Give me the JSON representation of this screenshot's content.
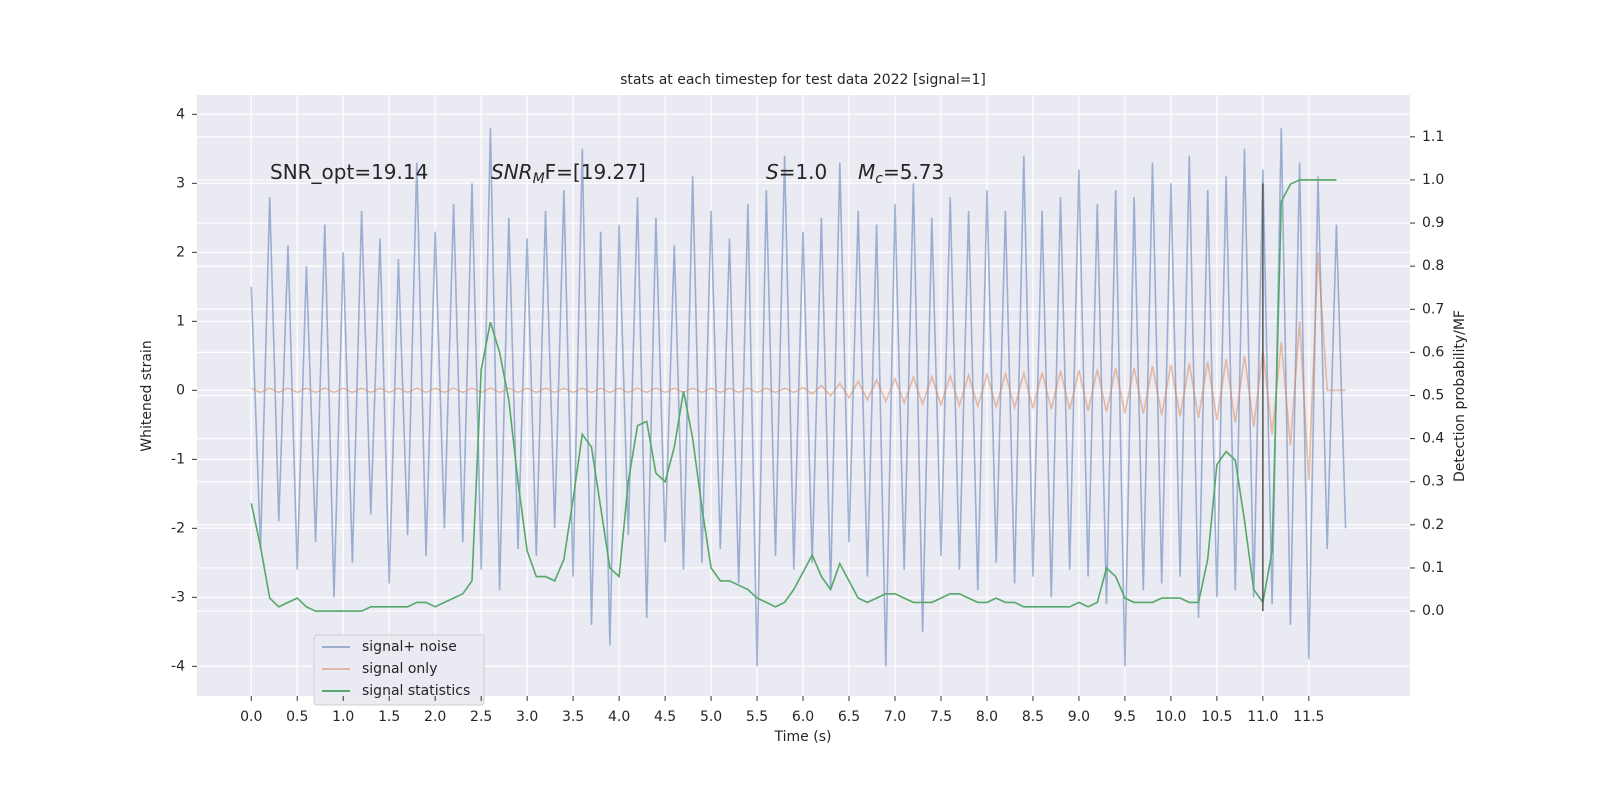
{
  "chart_data": {
    "type": "line",
    "title": "stats at each timestep for test data 2022 [signal=1]",
    "xlabel": "Time (s)",
    "ylabel": "Whitened strain",
    "y2label": "Detection probability/MF",
    "annotations": [
      {
        "text": "SNR_opt=19.14"
      },
      {
        "text": "SNR",
        "sub": "M",
        "tail": "F=[19.27]"
      },
      {
        "text": "S",
        "tail": "=1.0"
      },
      {
        "text": "M",
        "sub": "c",
        "tail": "=5.73"
      }
    ],
    "x": [
      0.0,
      0.1,
      0.2,
      0.3,
      0.4,
      0.5,
      0.6,
      0.7,
      0.8,
      0.9,
      1.0,
      1.1,
      1.2,
      1.3,
      1.4,
      1.5,
      1.6,
      1.7,
      1.8,
      1.9,
      2.0,
      2.1,
      2.2,
      2.3,
      2.4,
      2.5,
      2.6,
      2.7,
      2.8,
      2.9,
      3.0,
      3.1,
      3.2,
      3.3,
      3.4,
      3.5,
      3.6,
      3.7,
      3.8,
      3.9,
      4.0,
      4.1,
      4.2,
      4.3,
      4.4,
      4.5,
      4.6,
      4.7,
      4.8,
      4.9,
      5.0,
      5.1,
      5.2,
      5.3,
      5.4,
      5.5,
      5.6,
      5.7,
      5.8,
      5.9,
      6.0,
      6.1,
      6.2,
      6.3,
      6.4,
      6.5,
      6.6,
      6.7,
      6.8,
      6.9,
      7.0,
      7.1,
      7.2,
      7.3,
      7.4,
      7.5,
      7.6,
      7.7,
      7.8,
      7.9,
      8.0,
      8.1,
      8.2,
      8.3,
      8.4,
      8.5,
      8.6,
      8.7,
      8.8,
      8.9,
      9.0,
      9.1,
      9.2,
      9.3,
      9.4,
      9.5,
      9.6,
      9.7,
      9.8,
      9.9,
      10.0,
      10.1,
      10.2,
      10.3,
      10.4,
      10.5,
      10.6,
      10.7,
      10.8,
      10.9,
      11.0,
      11.1,
      11.2,
      11.3,
      11.4,
      11.5,
      11.6,
      11.7,
      11.8,
      11.9
    ],
    "series": [
      {
        "name": "signal+ noise",
        "color": "#4c72b0",
        "opacity": 0.5,
        "values": [
          1.5,
          -2.3,
          2.8,
          -1.9,
          2.1,
          -2.6,
          1.8,
          -2.2,
          2.4,
          -3.0,
          2.0,
          -2.5,
          2.6,
          -1.8,
          2.2,
          -2.8,
          1.9,
          -2.1,
          3.3,
          -2.4,
          2.3,
          -2.0,
          2.7,
          -2.2,
          3.0,
          -2.6,
          3.8,
          -2.9,
          2.5,
          -2.3,
          2.2,
          -2.4,
          2.6,
          -2.0,
          2.9,
          -2.7,
          3.5,
          -3.4,
          2.3,
          -3.7,
          2.4,
          -2.1,
          2.8,
          -3.3,
          2.5,
          -2.2,
          2.1,
          -2.6,
          3.1,
          -2.5,
          2.6,
          -2.3,
          2.2,
          -2.8,
          2.7,
          -4.0,
          2.9,
          -2.4,
          3.4,
          -2.6,
          2.3,
          -2.5,
          2.5,
          -2.9,
          3.3,
          -2.2,
          2.6,
          -2.7,
          2.4,
          -4.0,
          2.7,
          -2.6,
          3.0,
          -3.5,
          2.5,
          -2.4,
          2.8,
          -2.6,
          2.6,
          -2.9,
          2.9,
          -2.5,
          2.6,
          -2.8,
          3.4,
          -2.7,
          2.6,
          -3.0,
          2.8,
          -2.6,
          3.2,
          -2.7,
          2.7,
          -3.1,
          2.9,
          -4.0,
          2.8,
          -2.9,
          3.3,
          -2.8,
          3.0,
          -2.7,
          3.4,
          -3.3,
          2.9,
          -3.0,
          3.1,
          -2.9,
          3.5,
          -3.0,
          3.2,
          -3.1,
          3.8,
          -3.4,
          3.3,
          -3.9,
          3.1,
          -2.3,
          2.4,
          -2.0
        ]
      },
      {
        "name": "signal only",
        "color": "#dd8452",
        "opacity": 0.5,
        "values": [
          0.03,
          -0.03,
          0.03,
          -0.03,
          0.03,
          -0.03,
          0.03,
          -0.03,
          0.03,
          -0.03,
          0.03,
          -0.03,
          0.03,
          -0.03,
          0.03,
          -0.03,
          0.03,
          -0.03,
          0.03,
          -0.03,
          0.03,
          -0.03,
          0.03,
          -0.03,
          0.03,
          -0.03,
          0.03,
          -0.03,
          0.03,
          -0.03,
          0.03,
          -0.03,
          0.03,
          -0.03,
          0.03,
          -0.03,
          0.03,
          -0.03,
          0.03,
          -0.03,
          0.03,
          -0.03,
          0.03,
          -0.03,
          0.03,
          -0.03,
          0.03,
          -0.03,
          0.03,
          -0.03,
          0.03,
          -0.03,
          0.03,
          -0.03,
          0.03,
          -0.03,
          0.03,
          -0.03,
          0.03,
          -0.03,
          0.04,
          -0.05,
          0.07,
          -0.08,
          0.1,
          -0.11,
          0.13,
          -0.14,
          0.15,
          -0.16,
          0.17,
          -0.18,
          0.19,
          -0.2,
          0.2,
          -0.21,
          0.21,
          -0.22,
          0.22,
          -0.23,
          0.23,
          -0.24,
          0.24,
          -0.25,
          0.25,
          -0.26,
          0.26,
          -0.27,
          0.28,
          -0.28,
          0.29,
          -0.3,
          0.3,
          -0.31,
          0.32,
          -0.33,
          0.33,
          -0.34,
          0.35,
          -0.36,
          0.37,
          -0.38,
          0.39,
          -0.4,
          0.42,
          -0.43,
          0.45,
          -0.47,
          0.5,
          -0.53,
          0.58,
          -0.63,
          0.7,
          -0.8,
          1.0,
          -1.3,
          2.0,
          0.0,
          0.0,
          0.0
        ]
      },
      {
        "name": "signal statistics",
        "color": "#55a868",
        "opacity": 1,
        "axis": "y2",
        "values": [
          0.25,
          0.15,
          0.03,
          0.01,
          0.02,
          0.03,
          0.01,
          0,
          0,
          0,
          0,
          0,
          0,
          0.01,
          0.01,
          0.01,
          0.01,
          0.01,
          0.02,
          0.02,
          0.01,
          0.02,
          0.03,
          0.04,
          0.07,
          0.56,
          0.67,
          0.6,
          0.49,
          0.3,
          0.14,
          0.08,
          0.08,
          0.07,
          0.12,
          0.26,
          0.41,
          0.38,
          0.24,
          0.1,
          0.08,
          0.3,
          0.43,
          0.44,
          0.32,
          0.3,
          0.38,
          0.51,
          0.4,
          0.24,
          0.1,
          0.07,
          0.07,
          0.06,
          0.05,
          0.03,
          0.02,
          0.01,
          0.02,
          0.05,
          0.09,
          0.13,
          0.08,
          0.05,
          0.11,
          0.07,
          0.03,
          0.02,
          0.03,
          0.04,
          0.04,
          0.03,
          0.02,
          0.02,
          0.02,
          0.03,
          0.04,
          0.04,
          0.03,
          0.02,
          0.02,
          0.03,
          0.02,
          0.02,
          0.01,
          0.01,
          0.01,
          0.01,
          0.01,
          0.01,
          0.02,
          0.01,
          0.02,
          0.1,
          0.08,
          0.03,
          0.02,
          0.02,
          0.02,
          0.03,
          0.03,
          0.03,
          0.02,
          0.02,
          0.12,
          0.34,
          0.37,
          0.35,
          0.21,
          0.05,
          0.02,
          0.14,
          0.95,
          0.99,
          1.0,
          1.0,
          1.0,
          1.0,
          1.0,
          null
        ]
      }
    ],
    "vline": {
      "x": 11.0,
      "ymin": -3.2,
      "ymax": 3.0,
      "color": "#555555"
    },
    "xlim": [
      -0.59,
      12.6
    ],
    "ylim": [
      -4.43,
      4.28
    ],
    "y2lim": [
      -0.197,
      1.197
    ],
    "xticks": [
      {
        "value": 0,
        "label": "0.0"
      },
      0.5,
      {
        "value": 1,
        "label": "1.0"
      },
      1.5,
      {
        "value": 2,
        "label": "2.0"
      },
      2.5,
      {
        "value": 3,
        "label": "3.0"
      },
      3.5,
      {
        "value": 4,
        "label": "4.0"
      },
      4.5,
      {
        "value": 5,
        "label": "5.0"
      },
      5.5,
      {
        "value": 6,
        "label": "6.0"
      },
      6.5,
      {
        "value": 7,
        "label": "7.0"
      },
      7.5,
      {
        "value": 8,
        "label": "8.0"
      },
      8.5,
      {
        "value": 9,
        "label": "9.0"
      },
      9.5,
      {
        "value": 10,
        "label": "10.0"
      },
      10.5,
      {
        "value": 11,
        "label": "11.0"
      },
      11.5
    ],
    "yticks": [
      -4,
      -3,
      -2,
      -1,
      0,
      1,
      2,
      3,
      4
    ],
    "y2ticks": [
      {
        "value": 0,
        "label": "0.0"
      },
      0.1,
      0.2,
      0.3,
      0.4,
      0.5,
      0.6,
      0.7,
      0.8,
      0.9,
      {
        "value": 1,
        "label": "1.0"
      },
      1.1
    ],
    "grid": true,
    "legend": "lower left"
  }
}
